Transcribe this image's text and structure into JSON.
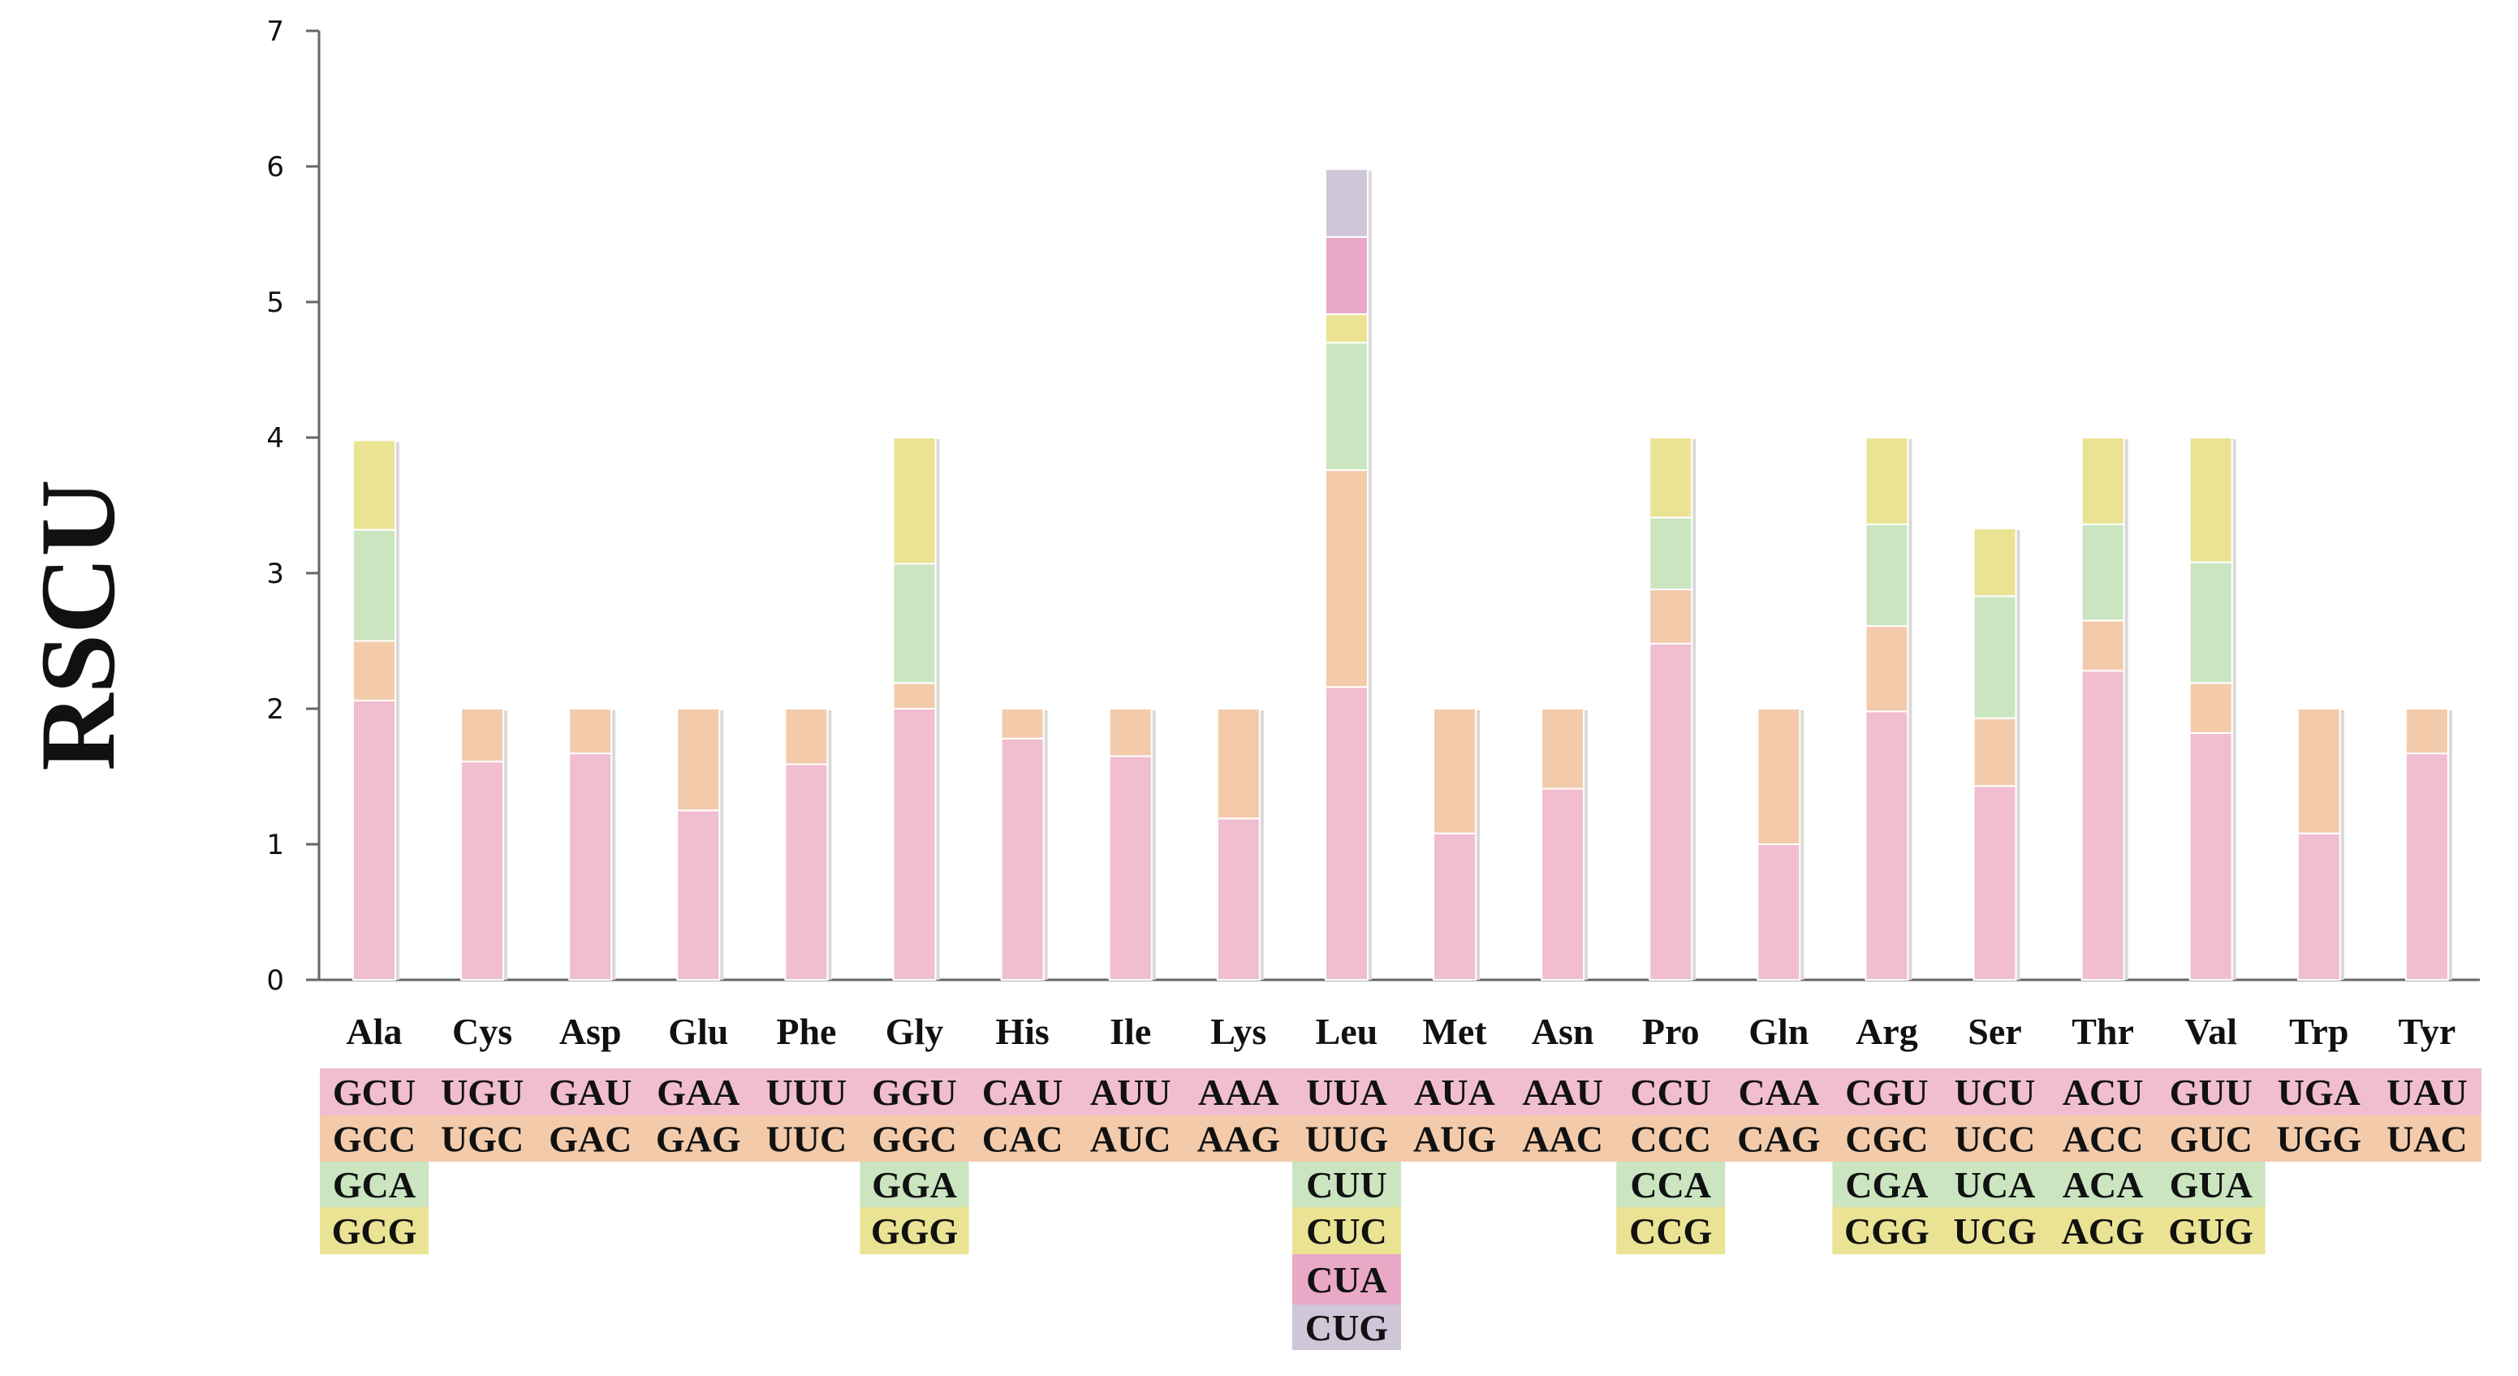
{
  "chart_data": {
    "type": "bar",
    "stacked": true,
    "title": "",
    "xlabel": "",
    "ylabel": "RSCU",
    "ylim": [
      0,
      7
    ],
    "yticks": [
      0,
      1,
      2,
      3,
      4,
      5,
      6,
      7
    ],
    "grid": false,
    "legend": "none",
    "stack_colors": [
      "#f1bdd0",
      "#f3cbaa",
      "#cae5c0",
      "#ebe394",
      "#e9a8c6",
      "#cfc6d8"
    ],
    "categories": [
      "Ala",
      "Cys",
      "Asp",
      "Glu",
      "Phe",
      "Gly",
      "His",
      "Ile",
      "Lys",
      "Leu",
      "Met",
      "Asn",
      "Pro",
      "Gln",
      "Arg",
      "Ser",
      "Thr",
      "Val",
      "Trp",
      "Tyr"
    ],
    "bars": [
      {
        "amino_acid": "Ala",
        "segments": [
          2.06,
          0.44,
          0.82,
          0.66
        ],
        "codons": [
          "GCU",
          "GCC",
          "GCA",
          "GCG"
        ]
      },
      {
        "amino_acid": "Cys",
        "segments": [
          1.61,
          0.39
        ],
        "codons": [
          "UGU",
          "UGC"
        ]
      },
      {
        "amino_acid": "Asp",
        "segments": [
          1.67,
          0.33
        ],
        "codons": [
          "GAU",
          "GAC"
        ]
      },
      {
        "amino_acid": "Glu",
        "segments": [
          1.25,
          0.75
        ],
        "codons": [
          "GAA",
          "GAG"
        ]
      },
      {
        "amino_acid": "Phe",
        "segments": [
          1.59,
          0.41
        ],
        "codons": [
          "UUU",
          "UUC"
        ]
      },
      {
        "amino_acid": "Gly",
        "segments": [
          2.0,
          0.19,
          0.88,
          0.93
        ],
        "codons": [
          "GGU",
          "GGC",
          "GGA",
          "GGG"
        ]
      },
      {
        "amino_acid": "His",
        "segments": [
          1.78,
          0.22
        ],
        "codons": [
          "CAU",
          "CAC"
        ]
      },
      {
        "amino_acid": "Ile",
        "segments": [
          1.65,
          0.35
        ],
        "codons": [
          "AUU",
          "AUC"
        ]
      },
      {
        "amino_acid": "Lys",
        "segments": [
          1.19,
          0.81
        ],
        "codons": [
          "AAA",
          "AAG"
        ]
      },
      {
        "amino_acid": "Leu",
        "segments": [
          2.16,
          1.6,
          0.94,
          0.21,
          0.57,
          0.5
        ],
        "codons": [
          "UUA",
          "UUG",
          "CUU",
          "CUC",
          "CUA",
          "CUG"
        ]
      },
      {
        "amino_acid": "Met",
        "segments": [
          1.08,
          0.92
        ],
        "codons": [
          "AUA",
          "AUG"
        ]
      },
      {
        "amino_acid": "Asn",
        "segments": [
          1.41,
          0.59
        ],
        "codons": [
          "AAU",
          "AAC"
        ]
      },
      {
        "amino_acid": "Pro",
        "segments": [
          2.48,
          0.4,
          0.53,
          0.59
        ],
        "codons": [
          "CCU",
          "CCC",
          "CCA",
          "CCG"
        ]
      },
      {
        "amino_acid": "Gln",
        "segments": [
          1.0,
          1.0
        ],
        "codons": [
          "CAA",
          "CAG"
        ]
      },
      {
        "amino_acid": "Arg",
        "segments": [
          1.98,
          0.63,
          0.75,
          0.64
        ],
        "codons": [
          "CGU",
          "CGC",
          "CGA",
          "CGG"
        ]
      },
      {
        "amino_acid": "Ser",
        "segments": [
          1.43,
          0.5,
          0.9,
          0.5
        ],
        "codons": [
          "UCU",
          "UCC",
          "UCA",
          "UCG"
        ]
      },
      {
        "amino_acid": "Thr",
        "segments": [
          2.28,
          0.37,
          0.71,
          0.64
        ],
        "codons": [
          "ACU",
          "ACC",
          "ACA",
          "ACG"
        ]
      },
      {
        "amino_acid": "Val",
        "segments": [
          1.82,
          0.37,
          0.89,
          0.92
        ],
        "codons": [
          "GUU",
          "GUC",
          "GUA",
          "GUG"
        ]
      },
      {
        "amino_acid": "Trp",
        "segments": [
          1.08,
          0.92
        ],
        "codons": [
          "UGA",
          "UGG"
        ]
      },
      {
        "amino_acid": "Tyr",
        "segments": [
          1.67,
          0.33
        ],
        "codons": [
          "UAU",
          "UAC"
        ]
      }
    ]
  }
}
